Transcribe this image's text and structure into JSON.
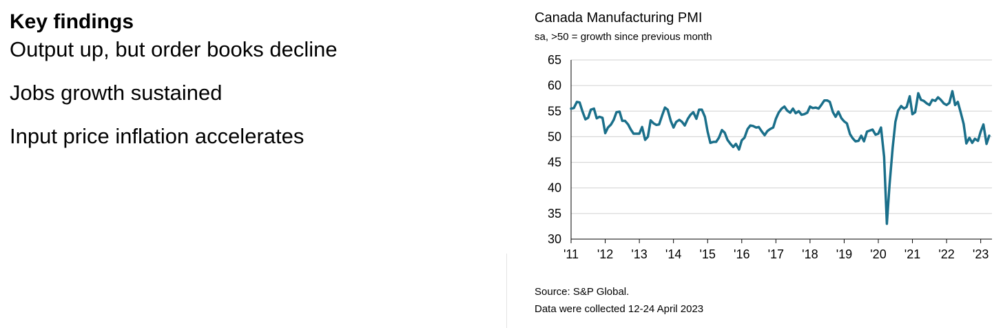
{
  "findings": {
    "heading": "Key findings",
    "items": [
      "Output up, but order books decline",
      "Jobs growth sustained",
      "Input price inflation accelerates"
    ]
  },
  "colors": {
    "line": "#1a6f8a",
    "grid": "#d0d0d0",
    "axis": "#000000"
  },
  "chart_data": {
    "type": "line",
    "title": "Canada Manufacturing PMI",
    "subtitle": "sa, >50 = growth since previous month",
    "xlabel": "",
    "ylabel": "",
    "ylim": [
      30,
      65
    ],
    "yticks": [
      30,
      35,
      40,
      45,
      50,
      55,
      60,
      65
    ],
    "xlim": [
      2011.0,
      2023.33
    ],
    "xticks": [
      {
        "value": 2011,
        "label": "'11"
      },
      {
        "value": 2012,
        "label": "'12"
      },
      {
        "value": 2013,
        "label": "'13"
      },
      {
        "value": 2014,
        "label": "'14"
      },
      {
        "value": 2015,
        "label": "'15"
      },
      {
        "value": 2016,
        "label": "'16"
      },
      {
        "value": 2017,
        "label": "'17"
      },
      {
        "value": 2018,
        "label": "'18"
      },
      {
        "value": 2019,
        "label": "'19"
      },
      {
        "value": 2020,
        "label": "'20"
      },
      {
        "value": 2021,
        "label": "'21"
      },
      {
        "value": 2022,
        "label": "'22"
      },
      {
        "value": 2023,
        "label": "'23"
      }
    ],
    "grid": true,
    "series": [
      {
        "points": [
          [
            2011.0,
            55.5
          ],
          [
            2011.08,
            55.6
          ],
          [
            2011.17,
            56.8
          ],
          [
            2011.25,
            56.7
          ],
          [
            2011.33,
            55.0
          ],
          [
            2011.42,
            53.4
          ],
          [
            2011.5,
            53.7
          ],
          [
            2011.58,
            55.3
          ],
          [
            2011.67,
            55.5
          ],
          [
            2011.75,
            53.6
          ],
          [
            2011.83,
            53.9
          ],
          [
            2011.92,
            53.7
          ],
          [
            2012.0,
            50.7
          ],
          [
            2012.08,
            51.8
          ],
          [
            2012.17,
            52.4
          ],
          [
            2012.25,
            53.3
          ],
          [
            2012.33,
            54.8
          ],
          [
            2012.42,
            54.9
          ],
          [
            2012.5,
            53.1
          ],
          [
            2012.58,
            53.1
          ],
          [
            2012.67,
            52.4
          ],
          [
            2012.75,
            51.4
          ],
          [
            2012.83,
            50.6
          ],
          [
            2012.92,
            50.6
          ],
          [
            2013.0,
            50.6
          ],
          [
            2013.08,
            51.9
          ],
          [
            2013.17,
            49.4
          ],
          [
            2013.25,
            50.0
          ],
          [
            2013.33,
            53.2
          ],
          [
            2013.42,
            52.6
          ],
          [
            2013.5,
            52.3
          ],
          [
            2013.58,
            52.4
          ],
          [
            2013.67,
            54.2
          ],
          [
            2013.75,
            55.7
          ],
          [
            2013.83,
            55.3
          ],
          [
            2013.92,
            53.1
          ],
          [
            2014.0,
            51.8
          ],
          [
            2014.08,
            52.9
          ],
          [
            2014.17,
            53.3
          ],
          [
            2014.25,
            52.9
          ],
          [
            2014.33,
            52.2
          ],
          [
            2014.42,
            53.5
          ],
          [
            2014.5,
            54.3
          ],
          [
            2014.58,
            54.8
          ],
          [
            2014.67,
            53.5
          ],
          [
            2014.75,
            55.3
          ],
          [
            2014.83,
            55.3
          ],
          [
            2014.92,
            53.9
          ],
          [
            2015.0,
            51.0
          ],
          [
            2015.08,
            48.8
          ],
          [
            2015.17,
            49.0
          ],
          [
            2015.25,
            49.0
          ],
          [
            2015.33,
            49.8
          ],
          [
            2015.42,
            51.3
          ],
          [
            2015.5,
            50.8
          ],
          [
            2015.58,
            49.4
          ],
          [
            2015.67,
            48.6
          ],
          [
            2015.75,
            48.0
          ],
          [
            2015.83,
            48.6
          ],
          [
            2015.92,
            47.5
          ],
          [
            2016.0,
            49.3
          ],
          [
            2016.08,
            49.8
          ],
          [
            2016.17,
            51.5
          ],
          [
            2016.25,
            52.2
          ],
          [
            2016.33,
            52.1
          ],
          [
            2016.42,
            51.8
          ],
          [
            2016.5,
            51.9
          ],
          [
            2016.58,
            51.1
          ],
          [
            2016.67,
            50.3
          ],
          [
            2016.75,
            51.1
          ],
          [
            2016.83,
            51.5
          ],
          [
            2016.92,
            51.8
          ],
          [
            2017.0,
            53.5
          ],
          [
            2017.08,
            54.7
          ],
          [
            2017.17,
            55.5
          ],
          [
            2017.25,
            55.9
          ],
          [
            2017.33,
            55.1
          ],
          [
            2017.42,
            54.7
          ],
          [
            2017.5,
            55.5
          ],
          [
            2017.58,
            54.6
          ],
          [
            2017.67,
            55.0
          ],
          [
            2017.75,
            54.3
          ],
          [
            2017.83,
            54.4
          ],
          [
            2017.92,
            54.7
          ],
          [
            2018.0,
            55.9
          ],
          [
            2018.08,
            55.6
          ],
          [
            2018.17,
            55.7
          ],
          [
            2018.25,
            55.5
          ],
          [
            2018.33,
            56.2
          ],
          [
            2018.42,
            57.1
          ],
          [
            2018.5,
            57.1
          ],
          [
            2018.58,
            56.8
          ],
          [
            2018.67,
            54.8
          ],
          [
            2018.75,
            53.9
          ],
          [
            2018.83,
            54.9
          ],
          [
            2018.92,
            53.6
          ],
          [
            2019.0,
            53.0
          ],
          [
            2019.08,
            52.6
          ],
          [
            2019.17,
            50.5
          ],
          [
            2019.25,
            49.7
          ],
          [
            2019.33,
            49.1
          ],
          [
            2019.42,
            49.2
          ],
          [
            2019.5,
            50.2
          ],
          [
            2019.58,
            49.1
          ],
          [
            2019.67,
            51.0
          ],
          [
            2019.75,
            51.2
          ],
          [
            2019.83,
            51.4
          ],
          [
            2019.92,
            50.4
          ],
          [
            2020.0,
            50.6
          ],
          [
            2020.08,
            51.8
          ],
          [
            2020.17,
            46.1
          ],
          [
            2020.25,
            33.0
          ],
          [
            2020.33,
            40.6
          ],
          [
            2020.42,
            47.8
          ],
          [
            2020.5,
            52.9
          ],
          [
            2020.58,
            55.1
          ],
          [
            2020.67,
            56.0
          ],
          [
            2020.75,
            55.5
          ],
          [
            2020.83,
            55.8
          ],
          [
            2020.92,
            57.9
          ],
          [
            2021.0,
            54.4
          ],
          [
            2021.08,
            54.8
          ],
          [
            2021.17,
            58.5
          ],
          [
            2021.25,
            57.2
          ],
          [
            2021.33,
            57.0
          ],
          [
            2021.42,
            56.5
          ],
          [
            2021.5,
            56.2
          ],
          [
            2021.58,
            57.2
          ],
          [
            2021.67,
            57.0
          ],
          [
            2021.75,
            57.7
          ],
          [
            2021.83,
            57.2
          ],
          [
            2021.92,
            56.5
          ],
          [
            2022.0,
            56.2
          ],
          [
            2022.08,
            56.6
          ],
          [
            2022.17,
            58.9
          ],
          [
            2022.25,
            56.2
          ],
          [
            2022.33,
            56.8
          ],
          [
            2022.42,
            54.6
          ],
          [
            2022.5,
            52.5
          ],
          [
            2022.58,
            48.7
          ],
          [
            2022.67,
            49.8
          ],
          [
            2022.75,
            48.8
          ],
          [
            2022.83,
            49.6
          ],
          [
            2022.92,
            49.2
          ],
          [
            2023.0,
            51.0
          ],
          [
            2023.08,
            52.4
          ],
          [
            2023.17,
            48.6
          ],
          [
            2023.25,
            50.2
          ]
        ]
      }
    ]
  },
  "source": {
    "line1": "Source: S&P Global.",
    "line2": "Data were collected 12-24 April 2023"
  }
}
